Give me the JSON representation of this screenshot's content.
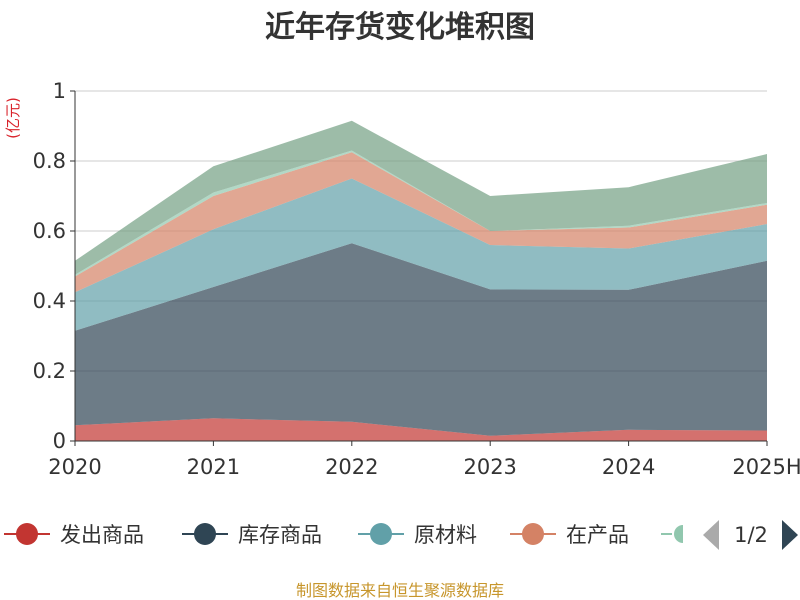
{
  "chart_data": {
    "type": "area",
    "stacked": true,
    "title": "近年存货变化堆积图",
    "y_unit": "(亿元)",
    "categories": [
      "2020",
      "2021",
      "2022",
      "2023",
      "2024",
      "2025H"
    ],
    "ylim": [
      0,
      1
    ],
    "y_ticks": [
      "0",
      "0.2",
      "0.4",
      "0.6",
      "0.8",
      "1"
    ],
    "grid": true,
    "series": [
      {
        "name": "发出商品",
        "values": [
          0.045,
          0.065,
          0.055,
          0.015,
          0.032,
          0.03
        ],
        "color": "#c23531"
      },
      {
        "name": "库存商品",
        "values": [
          0.27,
          0.375,
          0.51,
          0.418,
          0.4,
          0.485
        ],
        "color": "#2f4554"
      },
      {
        "name": "原材料",
        "values": [
          0.11,
          0.165,
          0.185,
          0.127,
          0.118,
          0.105
        ],
        "color": "#61a0a8"
      },
      {
        "name": "在产品",
        "values": [
          0.045,
          0.095,
          0.075,
          0.04,
          0.06,
          0.055
        ],
        "color": "#d48265"
      },
      {
        "name": "",
        "values": [
          0.005,
          0.01,
          0.005,
          0.0,
          0.005,
          0.005
        ],
        "color": "#91c7ae"
      },
      {
        "name": "",
        "values": [
          0.04,
          0.075,
          0.085,
          0.1,
          0.11,
          0.14
        ],
        "color": "#749f83"
      }
    ],
    "legend": {
      "position": "bottom",
      "visible_items": [
        "发出商品",
        "库存商品",
        "原材料",
        "在产品"
      ],
      "page_indicator": "1/2"
    }
  },
  "footer": {
    "source": "制图数据来自恒生聚源数据库"
  }
}
